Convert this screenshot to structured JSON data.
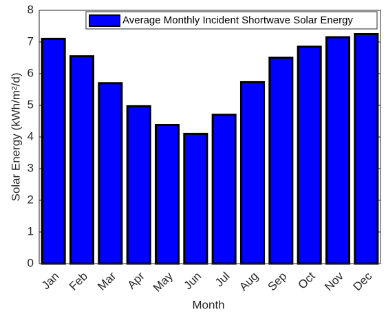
{
  "chart_data": {
    "type": "bar",
    "xlabel": "Month",
    "ylabel": "Solar Energy (kWh/m²/d)",
    "categories": [
      "Jan",
      "Feb",
      "Mar",
      "Apr",
      "May",
      "Jun",
      "Jul",
      "Aug",
      "Sep",
      "Oct",
      "Nov",
      "Dec"
    ],
    "series": [
      {
        "name": "Average Monthly Incident Shortwave Solar Energy",
        "color": "#0000ff",
        "values": [
          7.1,
          6.55,
          5.7,
          4.97,
          4.38,
          4.1,
          4.7,
          5.73,
          6.5,
          6.85,
          7.15,
          7.25
        ]
      }
    ],
    "ylim": [
      0,
      8
    ],
    "yticks": [
      0,
      1,
      2,
      3,
      4,
      5,
      6,
      7,
      8
    ],
    "legend": "top-right"
  }
}
